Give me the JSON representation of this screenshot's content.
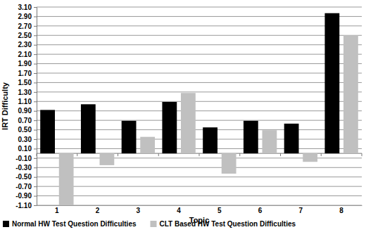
{
  "chart_data": {
    "type": "bar",
    "x_label": "Topic",
    "y_label": "IRT Difficulty",
    "categories": [
      "1",
      "2",
      "3",
      "4",
      "5",
      "6",
      "7",
      "8"
    ],
    "series": [
      {
        "name": "Normal HW Test Question Difficulties",
        "color": "#000000",
        "values": [
          0.92,
          1.04,
          0.69,
          1.09,
          0.55,
          0.69,
          0.63,
          2.97
        ]
      },
      {
        "name": "CLT Based HW Test Question Difficulties",
        "color": "#c0c0c0",
        "values": [
          -1.1,
          -0.25,
          0.35,
          1.28,
          -0.43,
          0.49,
          -0.18,
          2.5
        ]
      }
    ],
    "ylim": [
      -1.1,
      3.1
    ],
    "yticks": [
      {
        "value": -1.1,
        "label": "-1.10"
      },
      {
        "value": -0.9,
        "label": "-0.90"
      },
      {
        "value": -0.7,
        "label": "-0.70"
      },
      {
        "value": -0.5,
        "label": "-0.50"
      },
      {
        "value": -0.3,
        "label": "-0.30"
      },
      {
        "value": -0.1,
        "label": "-0.10"
      },
      {
        "value": 0.1,
        "label": "0.10"
      },
      {
        "value": 0.3,
        "label": "0.30"
      },
      {
        "value": 0.5,
        "label": "0.50"
      },
      {
        "value": 0.7,
        "label": "0.70"
      },
      {
        "value": 0.9,
        "label": "0.90"
      },
      {
        "value": 1.1,
        "label": "1.10"
      },
      {
        "value": 1.3,
        "label": "1.30"
      },
      {
        "value": 1.5,
        "label": "1.50"
      },
      {
        "value": 1.7,
        "label": "1.70"
      },
      {
        "value": 1.9,
        "label": "1.90"
      },
      {
        "value": 2.1,
        "label": "2.10"
      },
      {
        "value": 2.3,
        "label": "2.30"
      },
      {
        "value": 2.5,
        "label": "2.50"
      },
      {
        "value": 2.7,
        "label": "2.70"
      },
      {
        "value": 2.9,
        "label": "2.90"
      },
      {
        "value": 3.1,
        "label": "3.10"
      }
    ],
    "grid": true,
    "legend": "bottom"
  }
}
